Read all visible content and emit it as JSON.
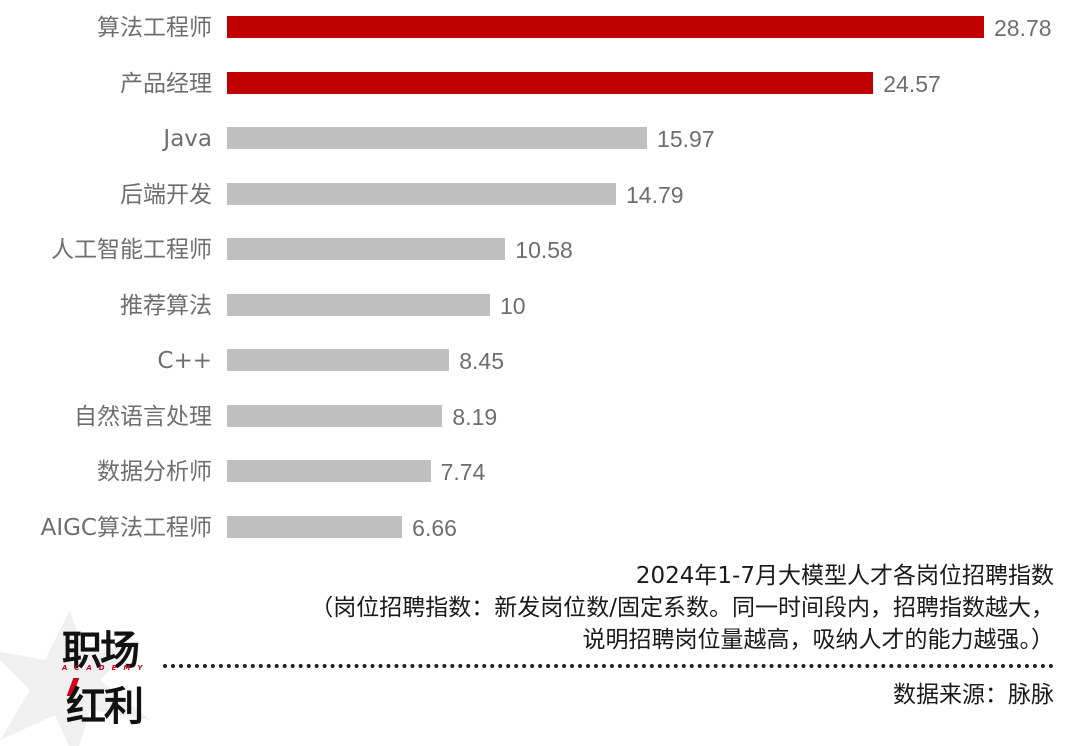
{
  "chart_data": {
    "type": "bar",
    "orientation": "horizontal",
    "title": "2024年1-7月大模型人才各岗位招聘指数",
    "subtitle": "（岗位招聘指数：新发岗位数/固定系数。同一时间段内，招聘指数越大，说明招聘岗位量越高，吸纳人才的能力越强。）",
    "xlabel": "",
    "ylabel": "",
    "grid": false,
    "legend": null,
    "categories": [
      "算法工程师",
      "产品经理",
      "Java",
      "后端开发",
      "人工智能工程师",
      "推荐算法",
      "C++",
      "自然语言处理",
      "数据分析师",
      "AIGC算法工程师"
    ],
    "values": [
      28.78,
      24.57,
      15.97,
      14.79,
      10.58,
      10,
      8.45,
      8.19,
      7.74,
      6.66
    ],
    "value_labels": [
      "28.78",
      "24.57",
      "15.97",
      "14.79",
      "10.58",
      "10",
      "8.45",
      "8.19",
      "7.74",
      "6.66"
    ],
    "highlight": [
      true,
      true,
      false,
      false,
      false,
      false,
      false,
      false,
      false,
      false
    ],
    "colors": {
      "highlight": "#c00000",
      "default": "#bfbfbf",
      "label": "#6e6e6e"
    },
    "xlim": [
      0,
      30
    ]
  },
  "caption": {
    "title": "2024年1-7月大模型人才各岗位招聘指数",
    "note_line1": "（岗位招聘指数：新发岗位数/固定系数。同一时间段内，招聘指数越大，",
    "note_line2": "说明招聘岗位量越高，吸纳人才的能力越强。）",
    "source": "数据来源：脉脉"
  },
  "logo": {
    "line1": "职场",
    "academy": "ACADEMY",
    "line2": "红利"
  }
}
